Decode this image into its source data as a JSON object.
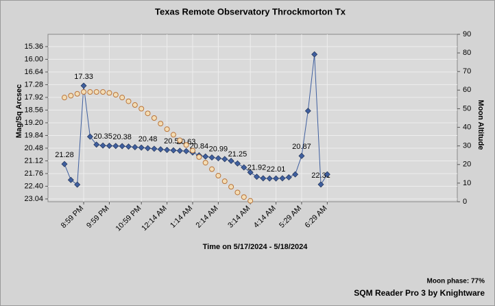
{
  "chart_data": {
    "type": "line",
    "title": "Texas Remote Observatory   Throckmorton Tx",
    "x_label": "Time on 5/17/2024 - 5/18/2024",
    "y_label": "Mag/Sq Arcsec",
    "y2_label": "Moon Altitude",
    "moon_phase": "Moon phase: 77%",
    "credit": "SQM Reader Pro 3 by Knightware",
    "grid": true,
    "categories": [
      null,
      null,
      null,
      "8:59 PM",
      null,
      null,
      null,
      "9:59 PM",
      null,
      null,
      null,
      null,
      "10:59 PM",
      null,
      null,
      null,
      "12:14 AM",
      null,
      null,
      null,
      "1:14 AM",
      null,
      null,
      null,
      "2:14 AM",
      null,
      null,
      null,
      null,
      "3:14 AM",
      null,
      null,
      null,
      "4:14 AM",
      null,
      null,
      null,
      "5:29 AM",
      null,
      null,
      null,
      "6:29 AM"
    ],
    "ylim": [
      23.18,
      14.74
    ],
    "yticks": [
      15.36,
      {
        "value": 16,
        "label": "16.00"
      },
      16.64,
      17.28,
      17.92,
      18.56,
      {
        "value": 19.2,
        "label": "19.20"
      },
      19.84,
      20.48,
      21.12,
      21.76,
      {
        "value": 22.4,
        "label": "22.40"
      },
      23.04
    ],
    "y2lim": [
      0,
      90
    ],
    "y2ticks": [
      0,
      10,
      20,
      30,
      40,
      50,
      60,
      70,
      80,
      90
    ],
    "series": [
      {
        "color": "#3f5f9f",
        "marker": "diamond",
        "values": [
          21.28,
          22.08,
          22.32,
          17.33,
          19.9,
          20.3,
          20.35,
          20.36,
          20.37,
          20.38,
          20.4,
          20.43,
          20.45,
          20.48,
          20.51,
          20.54,
          20.57,
          20.59,
          20.61,
          20.63,
          20.7,
          20.84,
          20.9,
          20.95,
          20.99,
          21.03,
          21.12,
          21.25,
          21.45,
          21.7,
          21.92,
          22.0,
          22.01,
          22.01,
          22.0,
          21.95,
          21.8,
          20.87,
          18.6,
          15.75,
          22.31,
          21.8
        ],
        "value_labels": [
          "21.28",
          null,
          null,
          "17.33",
          null,
          null,
          "20.35",
          null,
          null,
          "20.38",
          null,
          null,
          null,
          "20.48",
          null,
          null,
          null,
          "20.59",
          null,
          "20.63",
          null,
          "20.84",
          null,
          null,
          "20.99",
          null,
          null,
          "21.25",
          null,
          null,
          "21.92",
          null,
          null,
          "22.01",
          null,
          null,
          null,
          "20.87",
          null,
          null,
          "22.31",
          null
        ]
      },
      {
        "color": "#f3ddb5",
        "marker": "circle",
        "axis": "y2",
        "values": [
          56,
          57,
          58,
          59,
          59,
          59,
          59,
          58.5,
          57.5,
          56,
          54,
          52,
          50,
          47.5,
          45,
          42,
          39,
          36,
          33,
          30.5,
          27.5,
          24,
          21,
          17.5,
          14,
          11,
          8,
          5,
          2.5,
          0.5,
          null,
          null,
          null,
          null,
          null,
          null,
          null,
          null,
          null,
          null,
          null,
          null
        ]
      }
    ]
  }
}
